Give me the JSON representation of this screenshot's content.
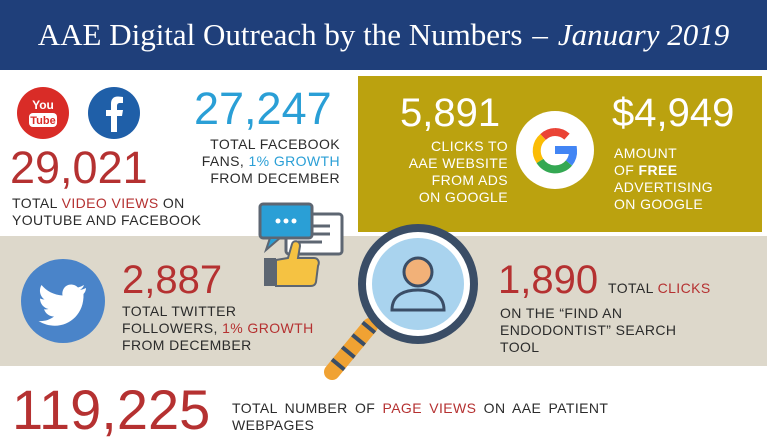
{
  "title": {
    "main": "AAE Digital Outreach by the Numbers",
    "dash": "–",
    "date": "January 2019"
  },
  "video": {
    "number": "29,021",
    "line1_prefix": "TOTAL ",
    "line1_highlight": "VIDEO VIEWS",
    "line1_suffix": " ON",
    "line2": "YOUTUBE AND FACEBOOK",
    "youtube_logo_text_top": "You",
    "youtube_logo_text_bottom": "Tube"
  },
  "facebook": {
    "number": "27,247",
    "line1": "TOTAL FACEBOOK",
    "line2_prefix": "FANS, ",
    "line2_highlight": "1% GROWTH",
    "line3": "FROM DECEMBER"
  },
  "google_clicks": {
    "number": "5,891",
    "line1": "CLICKS TO",
    "line2": "AAE WEBSITE",
    "line3": "FROM ADS",
    "line4": "ON GOOGLE"
  },
  "google_advertising": {
    "number": "$4,949",
    "line1": "AMOUNT",
    "line2_prefix": "OF ",
    "line2_highlight": "FREE",
    "line3": "ADVERTISING",
    "line4": "ON GOOGLE"
  },
  "twitter": {
    "number": "2,887",
    "line1": "TOTAL TWITTER",
    "line2_prefix": "FOLLOWERS, ",
    "line2_highlight": "1% GROWTH",
    "line3": "FROM DECEMBER"
  },
  "find_endodontist": {
    "number": "1,890",
    "line1_prefix": "TOTAL ",
    "line1_highlight": "CLICKS",
    "line2": "ON THE “FIND AN",
    "line3": "ENDODONTIST” SEARCH",
    "line4": "TOOL"
  },
  "page_views": {
    "number": "119,225",
    "line1_prefix": "TOTAL NUMBER OF ",
    "line1_highlight": "PAGE VIEWS",
    "line1_suffix": " ON AAE PATIENT",
    "line2": "WEBPAGES"
  },
  "colors": {
    "navy": "#1f3f7a",
    "red": "#b53131",
    "blue": "#2a9fd6",
    "gold": "#bba20f",
    "beige": "#ddd8cb"
  },
  "icons": [
    "youtube-icon",
    "facebook-icon",
    "google-icon",
    "twitter-icon",
    "chat-thumbs-up-icon",
    "magnifier-user-icon"
  ]
}
